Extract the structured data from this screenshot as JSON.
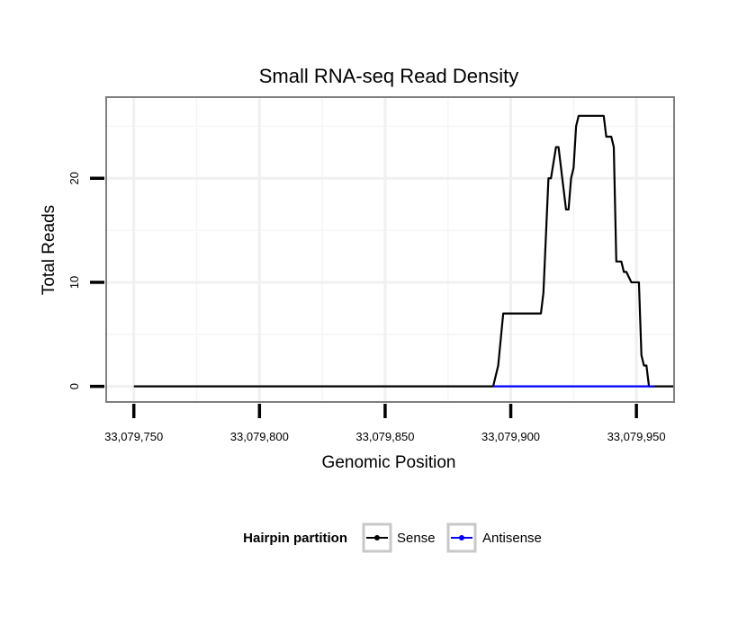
{
  "chart_data": {
    "type": "line",
    "title": "Small RNA-seq Read Density",
    "xlabel": "Genomic Position",
    "ylabel": "Total Reads",
    "xlim": [
      33079739,
      33079965
    ],
    "ylim": [
      -1.5,
      27.8
    ],
    "x_ticks": [
      33079750,
      33079800,
      33079850,
      33079900,
      33079950
    ],
    "x_tick_labels": [
      "33,079,750",
      "33,079,800",
      "33,079,850",
      "33,079,900",
      "33,079,950"
    ],
    "y_ticks": [
      0,
      10,
      20
    ],
    "y_tick_labels": [
      "0",
      "10",
      "20"
    ],
    "grid": true,
    "legend": {
      "title": "Hairpin partition",
      "position": "bottom",
      "entries": [
        "Sense",
        "Antisense"
      ]
    },
    "series": [
      {
        "name": "Sense",
        "color": "#000000",
        "x": [
          33079750,
          33079893,
          33079895,
          33079897,
          33079912,
          33079913,
          33079915,
          33079916,
          33079918,
          33079919,
          33079922,
          33079923,
          33079924,
          33079925,
          33079926,
          33079927,
          33079928,
          33079929,
          33079937,
          33079938,
          33079940,
          33079941,
          33079942,
          33079944,
          33079945,
          33079946,
          33079948,
          33079951,
          33079952,
          33079953,
          33079954,
          33079955,
          33079957,
          33079965
        ],
        "y": [
          0,
          0,
          2,
          7,
          7,
          9,
          20,
          20,
          23,
          23,
          17,
          17,
          20,
          21,
          25,
          26,
          26,
          26,
          26,
          24,
          24,
          23,
          12,
          12,
          11,
          11,
          10,
          10,
          3,
          2,
          2,
          0,
          0,
          0
        ]
      },
      {
        "name": "Antisense",
        "color": "#0000ff",
        "x": [
          33079893,
          33079957
        ],
        "y": [
          0,
          0
        ]
      }
    ]
  }
}
